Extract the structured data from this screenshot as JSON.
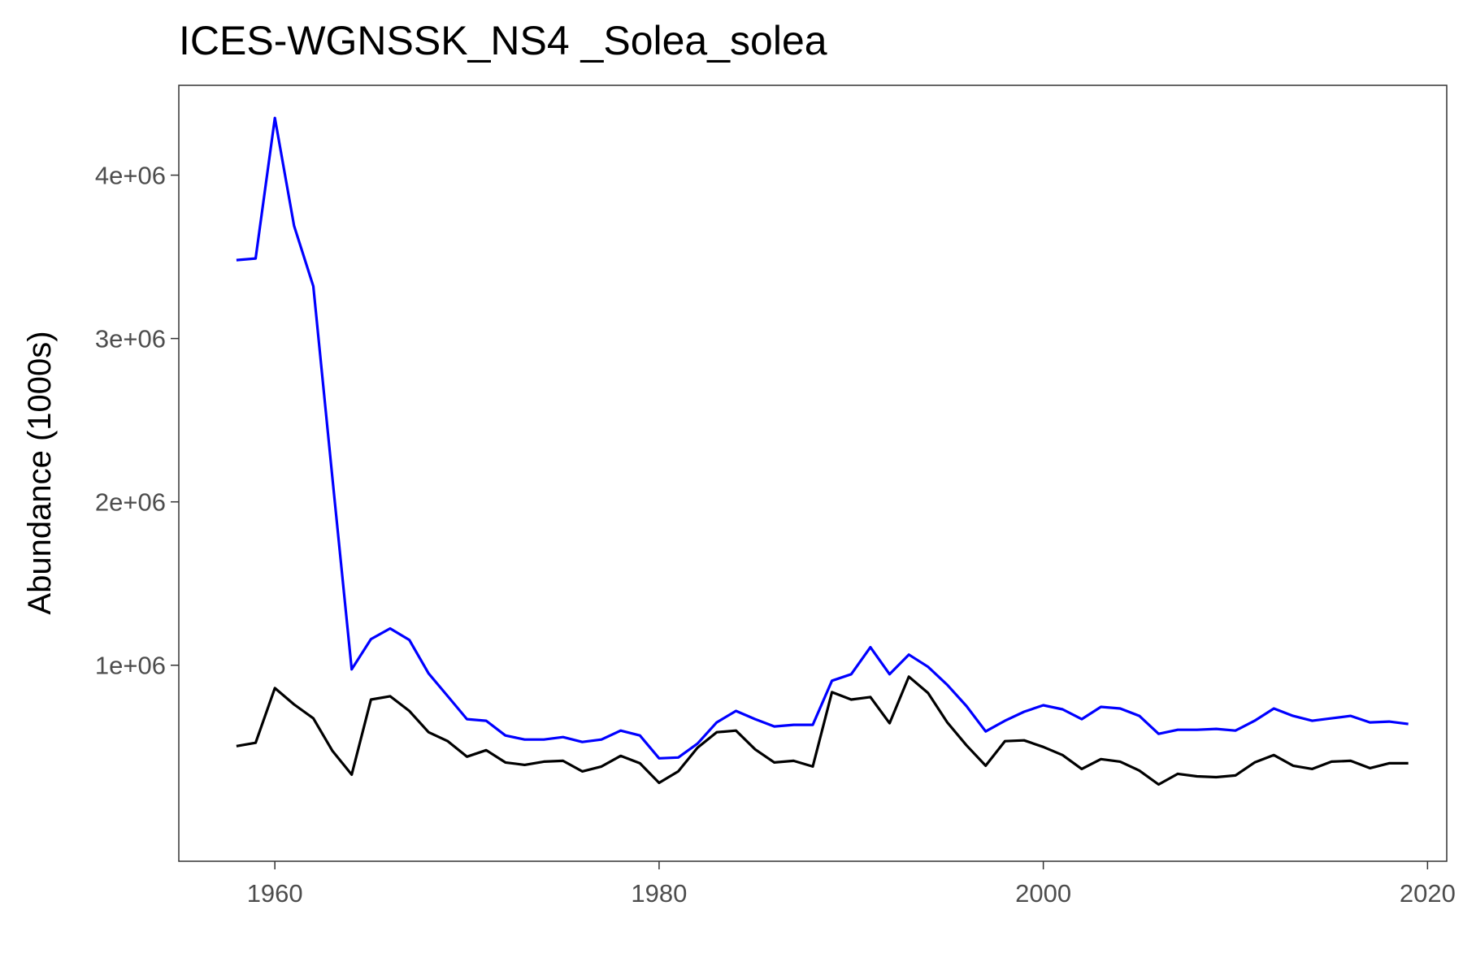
{
  "chart_data": {
    "type": "line",
    "title": "ICES-WGNSSK_NS4 _Solea_solea",
    "xlabel": "",
    "ylabel": "Abundance (1000s)",
    "xlim": [
      1955,
      2021
    ],
    "ylim": [
      -200000,
      4550000
    ],
    "x_ticks": [
      1960,
      1980,
      2000,
      2020
    ],
    "x_tick_labels": [
      "1960",
      "1980",
      "2000",
      "2020"
    ],
    "y_ticks": [
      1000000,
      2000000,
      3000000,
      4000000
    ],
    "y_tick_labels": [
      "1e+06",
      "2e+06",
      "3e+06",
      "4e+06"
    ],
    "grid": false,
    "legend": "none",
    "x": [
      1958,
      1959,
      1960,
      1961,
      1962,
      1963,
      1964,
      1965,
      1966,
      1967,
      1968,
      1969,
      1970,
      1971,
      1972,
      1973,
      1974,
      1975,
      1976,
      1977,
      1978,
      1979,
      1980,
      1981,
      1982,
      1983,
      1984,
      1985,
      1986,
      1987,
      1988,
      1989,
      1990,
      1991,
      1992,
      1993,
      1994,
      1995,
      1996,
      1997,
      1998,
      1999,
      2000,
      2001,
      2002,
      2003,
      2004,
      2005,
      2006,
      2007,
      2008,
      2009,
      2010,
      2011,
      2012,
      2013,
      2014,
      2015,
      2016,
      2017,
      2018,
      2019
    ],
    "series": [
      {
        "color": "#0000ff",
        "values": [
          3480000,
          3490000,
          4350000,
          3690000,
          3320000,
          2140000,
          975000,
          1160000,
          1225000,
          1155000,
          950000,
          810000,
          670000,
          660000,
          570000,
          545000,
          545000,
          560000,
          530000,
          545000,
          600000,
          570000,
          430000,
          435000,
          520000,
          650000,
          720000,
          670000,
          625000,
          635000,
          635000,
          905000,
          945000,
          1110000,
          945000,
          1065000,
          990000,
          880000,
          750000,
          595000,
          660000,
          715000,
          755000,
          730000,
          670000,
          745000,
          735000,
          690000,
          580000,
          605000,
          605000,
          610000,
          600000,
          660000,
          735000,
          690000,
          660000,
          675000,
          690000,
          650000,
          655000,
          640000
        ]
      },
      {
        "color": "#000000",
        "values": [
          505000,
          525000,
          860000,
          760000,
          675000,
          475000,
          330000,
          790000,
          810000,
          720000,
          590000,
          535000,
          440000,
          480000,
          405000,
          390000,
          410000,
          415000,
          350000,
          380000,
          445000,
          400000,
          280000,
          350000,
          495000,
          590000,
          600000,
          485000,
          405000,
          415000,
          380000,
          835000,
          790000,
          805000,
          645000,
          930000,
          830000,
          650000,
          510000,
          385000,
          535000,
          540000,
          500000,
          450000,
          365000,
          425000,
          410000,
          355000,
          270000,
          335000,
          320000,
          315000,
          325000,
          405000,
          450000,
          385000,
          365000,
          410000,
          415000,
          370000,
          400000,
          400000
        ]
      }
    ]
  }
}
